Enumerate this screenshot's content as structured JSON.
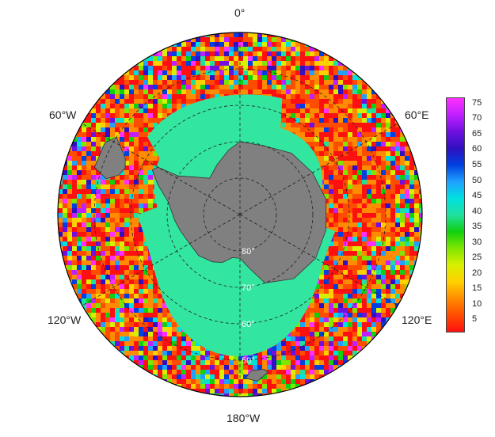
{
  "map": {
    "projection": "south-polar-stereographic",
    "longitude_labels": [
      {
        "text": "0°",
        "lon": 0
      },
      {
        "text": "60°E",
        "lon": 60
      },
      {
        "text": "120°E",
        "lon": 120
      },
      {
        "text": "180°W",
        "lon": 180
      },
      {
        "text": "120°W",
        "lon": -120
      },
      {
        "text": "60°W",
        "lon": -60
      }
    ],
    "latitude_labels": [
      {
        "text": "80°",
        "lat": -80
      },
      {
        "text": "70°",
        "lat": -70
      },
      {
        "text": "60°",
        "lat": -60
      },
      {
        "text": "50°",
        "lat": -50
      }
    ],
    "land_color": "#808080",
    "sea_ice_color": "#33e6a0"
  },
  "colorbar": {
    "min": 1,
    "max": 77,
    "ticks": [
      "75",
      "70",
      "65",
      "60",
      "55",
      "50",
      "45",
      "40",
      "35",
      "30",
      "25",
      "20",
      "15",
      "10",
      "5"
    ],
    "colors": [
      "#ff1010",
      "#ff4d00",
      "#ff8c00",
      "#ffd000",
      "#d8f000",
      "#7fe600",
      "#10d010",
      "#20e0a0",
      "#00e0e0",
      "#20a0ff",
      "#0040e0",
      "#3010c0",
      "#7010e0",
      "#c020ff",
      "#ff30ff"
    ]
  }
}
